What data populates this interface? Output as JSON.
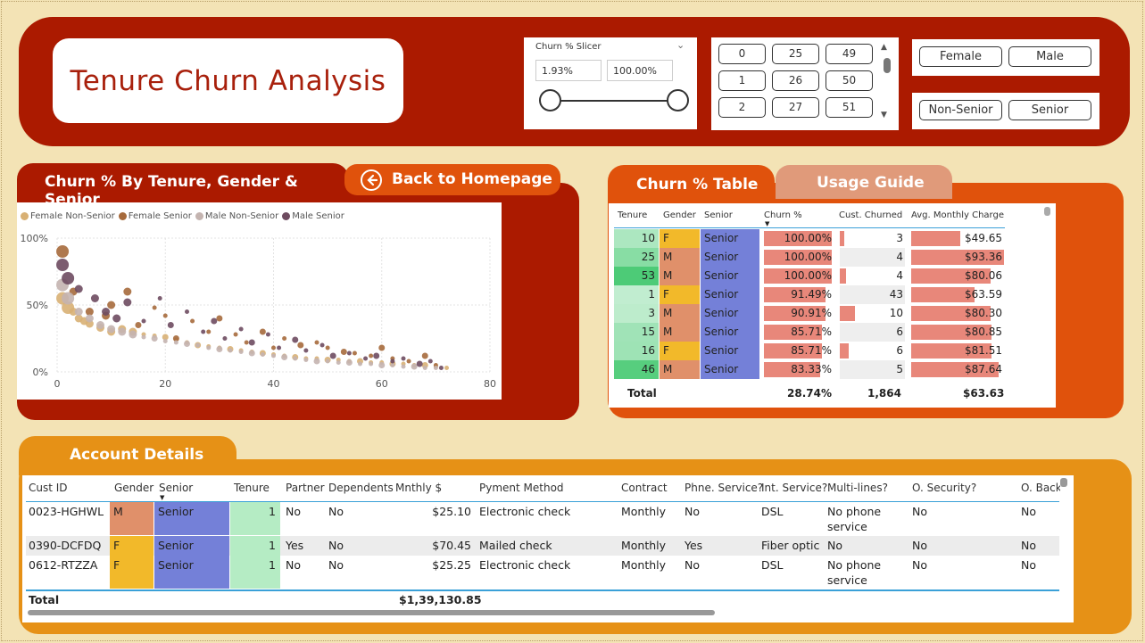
{
  "header": {
    "title": "Tenure Churn Analysis",
    "slicer": {
      "label": "Churn % Slicer",
      "min_value": "1.93%",
      "max_value": "100.00%"
    },
    "tenure_chips": [
      "0",
      "25",
      "49",
      "1",
      "26",
      "50",
      "2",
      "27",
      "51"
    ],
    "gender_options": [
      "Female",
      "Male"
    ],
    "senior_options": [
      "Non-Senior",
      "Senior"
    ]
  },
  "scatter": {
    "tab_label": "Churn % By Tenure, Gender & Senior",
    "back_label": "Back to Homepage",
    "legend": [
      {
        "label": "Female Non-Senior",
        "color": "#d8b074"
      },
      {
        "label": "Female Senior",
        "color": "#a66a3c"
      },
      {
        "label": "Male Non-Senior",
        "color": "#c4b4b0"
      },
      {
        "label": "Male Senior",
        "color": "#6e4b60"
      }
    ]
  },
  "chart_data": {
    "type": "scatter",
    "x_ticks": [
      "0",
      "20",
      "40",
      "60",
      "80"
    ],
    "y_ticks": [
      "0%",
      "50%",
      "100%"
    ],
    "xlim": [
      0,
      80
    ],
    "ylim": [
      0,
      100
    ],
    "series": [
      {
        "name": "Female Non-Senior",
        "points": [
          [
            1,
            55
          ],
          [
            2,
            48
          ],
          [
            3,
            45
          ],
          [
            4,
            40
          ],
          [
            5,
            38
          ],
          [
            6,
            36
          ],
          [
            8,
            33
          ],
          [
            10,
            30
          ],
          [
            12,
            32
          ],
          [
            14,
            30
          ],
          [
            16,
            28
          ],
          [
            18,
            27
          ],
          [
            20,
            26
          ],
          [
            22,
            24
          ],
          [
            24,
            22
          ],
          [
            26,
            20
          ],
          [
            28,
            19
          ],
          [
            30,
            18
          ],
          [
            32,
            17
          ],
          [
            34,
            16
          ],
          [
            36,
            15
          ],
          [
            38,
            14
          ],
          [
            40,
            13
          ],
          [
            42,
            12
          ],
          [
            44,
            11
          ],
          [
            46,
            10
          ],
          [
            48,
            10
          ],
          [
            50,
            9
          ],
          [
            52,
            9
          ],
          [
            54,
            8
          ],
          [
            56,
            8
          ],
          [
            58,
            7
          ],
          [
            60,
            7
          ],
          [
            62,
            6
          ],
          [
            64,
            6
          ],
          [
            66,
            5
          ],
          [
            68,
            5
          ],
          [
            70,
            4
          ],
          [
            72,
            3
          ]
        ]
      },
      {
        "name": "Female Senior",
        "points": [
          [
            1,
            90
          ],
          [
            3,
            60
          ],
          [
            6,
            45
          ],
          [
            9,
            42
          ],
          [
            10,
            50
          ],
          [
            13,
            60
          ],
          [
            15,
            35
          ],
          [
            18,
            48
          ],
          [
            20,
            42
          ],
          [
            22,
            25
          ],
          [
            25,
            38
          ],
          [
            28,
            30
          ],
          [
            30,
            40
          ],
          [
            33,
            28
          ],
          [
            35,
            22
          ],
          [
            38,
            30
          ],
          [
            40,
            18
          ],
          [
            42,
            25
          ],
          [
            45,
            20
          ],
          [
            48,
            22
          ],
          [
            50,
            18
          ],
          [
            53,
            15
          ],
          [
            55,
            14
          ],
          [
            58,
            12
          ],
          [
            60,
            18
          ],
          [
            62,
            10
          ],
          [
            65,
            8
          ],
          [
            68,
            12
          ],
          [
            70,
            5
          ]
        ]
      },
      {
        "name": "Male Non-Senior",
        "points": [
          [
            1,
            65
          ],
          [
            2,
            55
          ],
          [
            4,
            45
          ],
          [
            6,
            40
          ],
          [
            8,
            35
          ],
          [
            10,
            32
          ],
          [
            12,
            30
          ],
          [
            14,
            28
          ],
          [
            16,
            26
          ],
          [
            18,
            25
          ],
          [
            20,
            23
          ],
          [
            22,
            22
          ],
          [
            24,
            21
          ],
          [
            26,
            20
          ],
          [
            28,
            18
          ],
          [
            30,
            17
          ],
          [
            32,
            16
          ],
          [
            34,
            15
          ],
          [
            36,
            14
          ],
          [
            38,
            13
          ],
          [
            40,
            12
          ],
          [
            42,
            11
          ],
          [
            44,
            10
          ],
          [
            46,
            9
          ],
          [
            48,
            8
          ],
          [
            50,
            8
          ],
          [
            52,
            7
          ],
          [
            54,
            7
          ],
          [
            56,
            6
          ],
          [
            58,
            6
          ],
          [
            60,
            5
          ],
          [
            62,
            5
          ],
          [
            64,
            4
          ],
          [
            66,
            4
          ],
          [
            68,
            3
          ],
          [
            70,
            3
          ]
        ]
      },
      {
        "name": "Male Senior",
        "points": [
          [
            1,
            80
          ],
          [
            2,
            70
          ],
          [
            4,
            62
          ],
          [
            7,
            55
          ],
          [
            9,
            45
          ],
          [
            11,
            40
          ],
          [
            13,
            52
          ],
          [
            16,
            38
          ],
          [
            19,
            55
          ],
          [
            21,
            35
          ],
          [
            24,
            45
          ],
          [
            27,
            30
          ],
          [
            29,
            38
          ],
          [
            31,
            25
          ],
          [
            34,
            32
          ],
          [
            36,
            22
          ],
          [
            39,
            28
          ],
          [
            41,
            18
          ],
          [
            44,
            24
          ],
          [
            46,
            16
          ],
          [
            49,
            20
          ],
          [
            51,
            12
          ],
          [
            54,
            14
          ],
          [
            57,
            10
          ],
          [
            59,
            12
          ],
          [
            62,
            8
          ],
          [
            64,
            10
          ],
          [
            67,
            6
          ],
          [
            69,
            8
          ],
          [
            71,
            3
          ]
        ]
      }
    ]
  },
  "churn_table": {
    "tab_label": "Churn % Table",
    "guide_label": "Usage Guide",
    "columns": [
      "Tenure",
      "Gender",
      "Senior",
      "Churn %",
      "Cust. Churned",
      "Avg. Monthly Charge"
    ],
    "rows": [
      {
        "tenure": "10",
        "gender": "F",
        "senior": "Senior",
        "churn": "100.00%",
        "churned": "3",
        "charge": "$49.65",
        "churn_frac": 1.0,
        "churned_frac": 0.07,
        "charge_frac": 0.53
      },
      {
        "tenure": "25",
        "gender": "M",
        "senior": "Senior",
        "churn": "100.00%",
        "churned": "4",
        "charge": "$93.36",
        "churn_frac": 1.0,
        "churned_frac": 0.09,
        "charge_frac": 1.0
      },
      {
        "tenure": "53",
        "gender": "M",
        "senior": "Senior",
        "churn": "100.00%",
        "churned": "4",
        "charge": "$80.06",
        "churn_frac": 1.0,
        "churned_frac": 0.09,
        "charge_frac": 0.86
      },
      {
        "tenure": "1",
        "gender": "F",
        "senior": "Senior",
        "churn": "91.49%",
        "churned": "43",
        "charge": "$63.59",
        "churn_frac": 0.91,
        "churned_frac": 1.0,
        "charge_frac": 0.68
      },
      {
        "tenure": "3",
        "gender": "M",
        "senior": "Senior",
        "churn": "90.91%",
        "churned": "10",
        "charge": "$80.30",
        "churn_frac": 0.91,
        "churned_frac": 0.23,
        "charge_frac": 0.86
      },
      {
        "tenure": "15",
        "gender": "M",
        "senior": "Senior",
        "churn": "85.71%",
        "churned": "6",
        "charge": "$80.85",
        "churn_frac": 0.86,
        "churned_frac": 0.14,
        "charge_frac": 0.87
      },
      {
        "tenure": "16",
        "gender": "F",
        "senior": "Senior",
        "churn": "85.71%",
        "churned": "6",
        "charge": "$81.51",
        "churn_frac": 0.86,
        "churned_frac": 0.14,
        "charge_frac": 0.87
      },
      {
        "tenure": "46",
        "gender": "M",
        "senior": "Senior",
        "churn": "83.33%",
        "churned": "5",
        "charge": "$87.64",
        "churn_frac": 0.83,
        "churned_frac": 0.12,
        "charge_frac": 0.94
      }
    ],
    "total": {
      "label": "Total",
      "churn": "28.74%",
      "churned": "1,864",
      "charge": "$63.63"
    },
    "colors": {
      "female": "#f2b92a",
      "male": "#e0906a",
      "senior": "#7480d8",
      "tenure": "#6fd38c"
    }
  },
  "account": {
    "tab_label": "Account Details",
    "columns": [
      "Cust ID",
      "Gender",
      "Senior",
      "Tenure",
      "Partner",
      "Dependents",
      "Mnthly $",
      "Pyment Method",
      "Contract",
      "Phne. Service?",
      "Int. Service?",
      "Multi-lines?",
      "O. Security?",
      "O. Backu"
    ],
    "rows": [
      {
        "id": "0023-HGHWL",
        "gender": "M",
        "senior": "Senior",
        "tenure": "1",
        "partner": "No",
        "dependents": "No",
        "monthly": "$25.10",
        "payment": "Electronic check",
        "contract": "Monthly",
        "phone": "No",
        "internet": "DSL",
        "multi1": "No phone",
        "multi2": "service",
        "security": "No",
        "backup": "No"
      },
      {
        "id": "0390-DCFDQ",
        "gender": "F",
        "senior": "Senior",
        "tenure": "1",
        "partner": "Yes",
        "dependents": "No",
        "monthly": "$70.45",
        "payment": "Mailed check",
        "contract": "Monthly",
        "phone": "Yes",
        "internet": "Fiber optic",
        "multi1": "No",
        "multi2": "",
        "security": "No",
        "backup": "No"
      },
      {
        "id": "0612-RTZZA",
        "gender": "F",
        "senior": "Senior",
        "tenure": "1",
        "partner": "No",
        "dependents": "No",
        "monthly": "$25.25",
        "payment": "Electronic check",
        "contract": "Monthly",
        "phone": "No",
        "internet": "DSL",
        "multi1": "No phone",
        "multi2": "service",
        "security": "No",
        "backup": "No"
      }
    ],
    "total_label": "Total",
    "total_monthly": "$1,39,130.85"
  }
}
